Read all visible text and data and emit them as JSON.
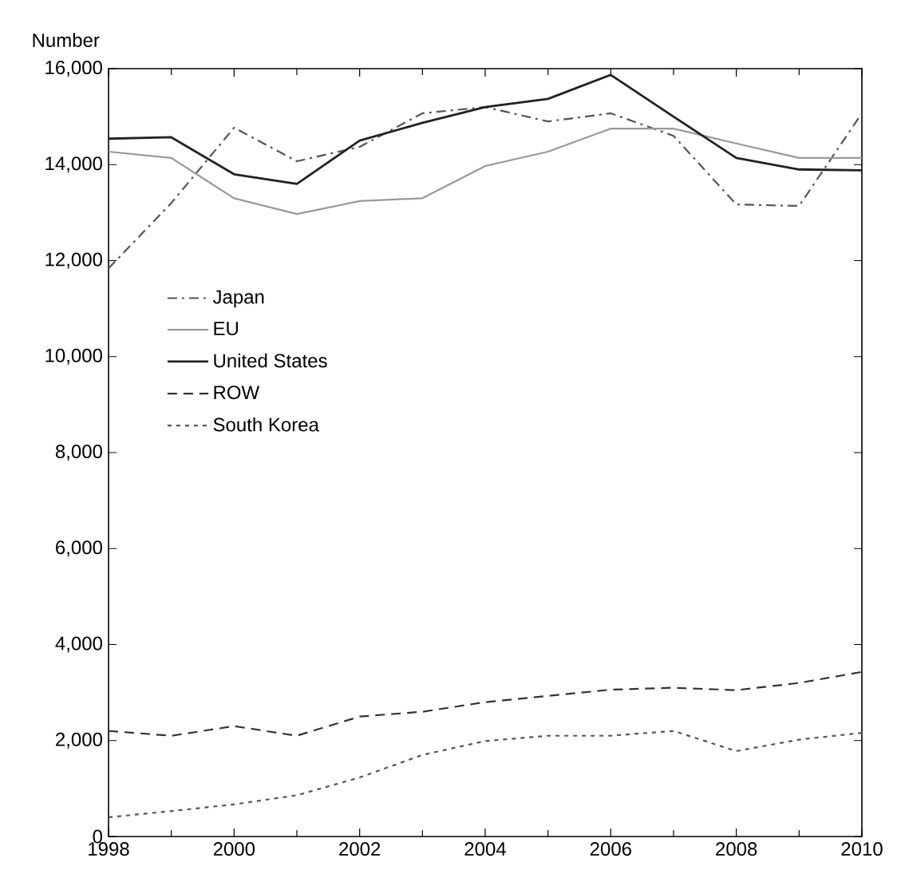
{
  "chart_data": {
    "type": "line",
    "ylabel": "Number",
    "x": [
      1998,
      1999,
      2000,
      2001,
      2002,
      2003,
      2004,
      2005,
      2006,
      2007,
      2008,
      2009,
      2010
    ],
    "series": [
      {
        "name": "Japan",
        "color": "#555555",
        "line_style": "dashdot",
        "values": [
          11840,
          13200,
          14770,
          14070,
          14370,
          15070,
          15200,
          14900,
          15070,
          14600,
          13170,
          13140,
          15070
        ]
      },
      {
        "name": "EU",
        "color": "#999999",
        "line_style": "solid",
        "values": [
          14270,
          14140,
          13300,
          12970,
          13240,
          13300,
          13970,
          14270,
          14750,
          14750,
          14440,
          14140,
          14140
        ]
      },
      {
        "name": "United States",
        "color": "#222222",
        "line_style": "solid",
        "values": [
          14540,
          14570,
          13800,
          13600,
          14500,
          14870,
          15200,
          15370,
          15870,
          15000,
          14140,
          13900,
          13880
        ]
      },
      {
        "name": "ROW",
        "color": "#333333",
        "line_style": "dashed",
        "values": [
          2200,
          2100,
          2300,
          2100,
          2500,
          2600,
          2800,
          2930,
          3060,
          3100,
          3050,
          3200,
          3430
        ]
      },
      {
        "name": "South Korea",
        "color": "#555555",
        "line_style": "dotted",
        "values": [
          400,
          530,
          670,
          860,
          1230,
          1700,
          1990,
          2100,
          2100,
          2200,
          1780,
          2020,
          2160
        ]
      }
    ],
    "xlim": [
      1998,
      2010
    ],
    "xticks": [
      1998,
      2000,
      2002,
      2004,
      2006,
      2008,
      2010
    ],
    "ylim": [
      0,
      16000
    ],
    "yticks": [
      {
        "value": 0,
        "label": "0"
      },
      {
        "value": 2000,
        "label": "2,000"
      },
      {
        "value": 4000,
        "label": "4,000"
      },
      {
        "value": 6000,
        "label": "6,000"
      },
      {
        "value": 8000,
        "label": "8,000"
      },
      {
        "value": 10000,
        "label": "10,000"
      },
      {
        "value": 12000,
        "label": "12,000"
      },
      {
        "value": 14000,
        "label": "14,000"
      },
      {
        "value": 16000,
        "label": "16,000"
      }
    ],
    "legend": "left",
    "grid": false,
    "marker": "none"
  }
}
